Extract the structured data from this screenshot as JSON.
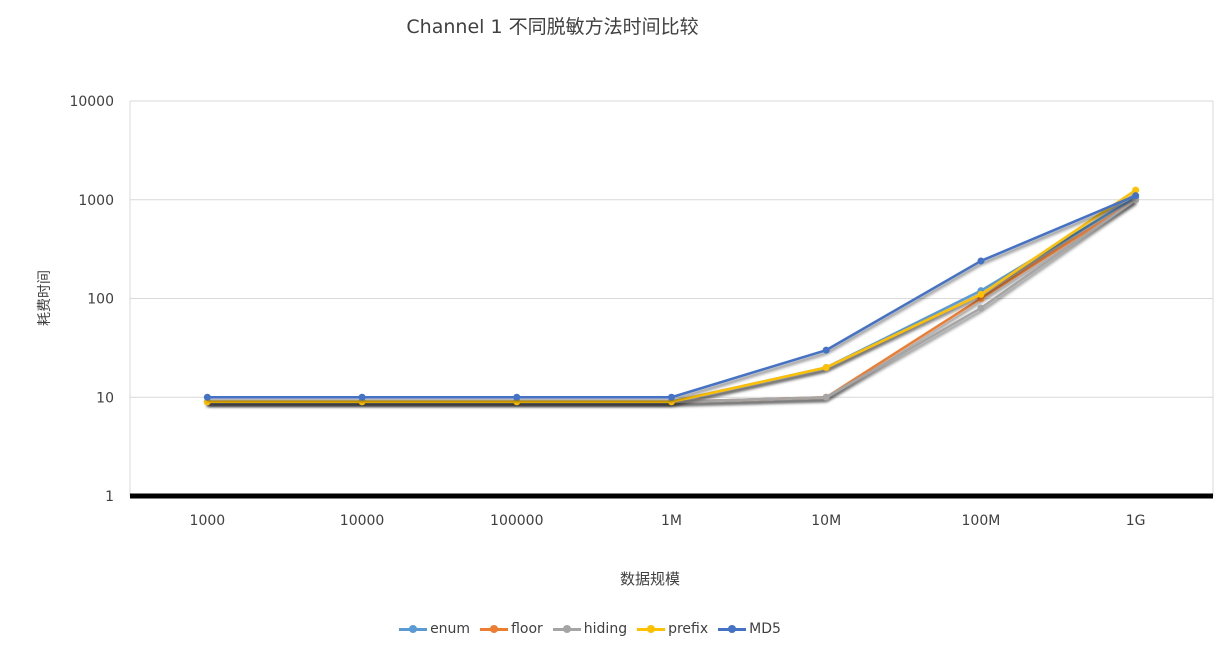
{
  "chart_data": {
    "type": "line",
    "title": "Channel 1 不同脱敏方法时间比较",
    "xlabel": "数据规模",
    "ylabel": "耗费时间",
    "categories": [
      "1000",
      "10000",
      "100000",
      "1M",
      "10M",
      "100M",
      "1G"
    ],
    "y_scale": "log",
    "ylim": [
      1,
      10000
    ],
    "y_ticks": [
      "1",
      "10",
      "100",
      "1000",
      "10000"
    ],
    "grid": true,
    "legend_position": "bottom",
    "series": [
      {
        "name": "enum",
        "color": "#5B9BD5",
        "values": [
          9,
          9,
          9,
          9,
          20,
          120,
          1050
        ]
      },
      {
        "name": "floor",
        "color": "#ED7D31",
        "values": [
          9,
          9,
          9,
          9,
          10,
          100,
          1000
        ]
      },
      {
        "name": "hiding",
        "color": "#A5A5A5",
        "values": [
          9,
          9,
          9,
          9,
          10,
          80,
          1000
        ]
      },
      {
        "name": "prefix",
        "color": "#FFC000",
        "values": [
          9,
          9,
          9,
          9,
          20,
          110,
          1250
        ]
      },
      {
        "name": "MD5",
        "color": "#4472C4",
        "values": [
          10,
          10,
          10,
          10,
          30,
          240,
          1100
        ]
      }
    ]
  }
}
